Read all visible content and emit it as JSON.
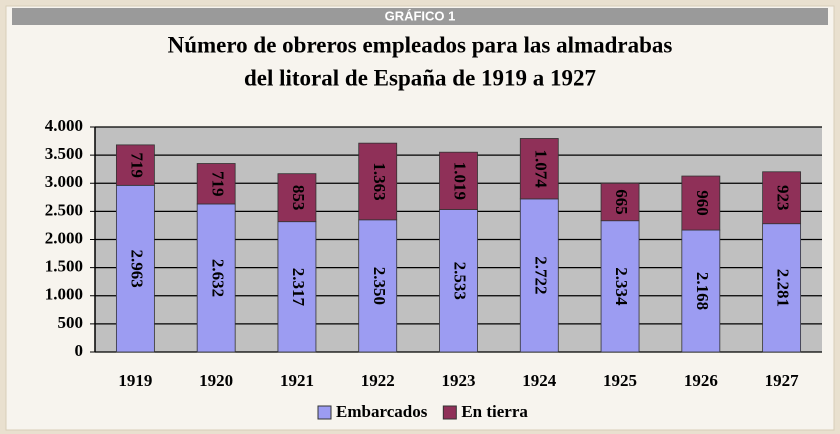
{
  "header": "GRÁFICO 1",
  "chart_data": {
    "type": "stacked-bar",
    "title": [
      "Número de obreros empleados para las almadrabas",
      "del litoral de España de 1919 a 1927"
    ],
    "categories": [
      "1919",
      "1920",
      "1921",
      "1922",
      "1923",
      "1924",
      "1925",
      "1926",
      "1927"
    ],
    "series": [
      {
        "name": "Embarcados",
        "color": "#9c9cf2",
        "values": [
          2963,
          2632,
          2317,
          2350,
          2533,
          2722,
          2334,
          2168,
          2281
        ],
        "value_labels": [
          "2.963",
          "2.632",
          "2.317",
          "2.350",
          "2.533",
          "2.722",
          "2.334",
          "2.168",
          "2.281"
        ]
      },
      {
        "name": "En tierra",
        "color": "#8f3058",
        "values": [
          719,
          719,
          853,
          1363,
          1019,
          1074,
          665,
          960,
          923
        ],
        "value_labels": [
          "719",
          "719",
          "853",
          "1.363",
          "1.019",
          "1.074",
          "665",
          "960",
          "923"
        ]
      }
    ],
    "ylim": [
      0,
      4000
    ],
    "yticks": [
      0,
      500,
      {
        "value": 1000,
        "label": "1.000"
      },
      {
        "value": 1500,
        "label": "1.500"
      },
      {
        "value": 2000,
        "label": "2.000"
      },
      {
        "value": 2500,
        "label": "2.500"
      },
      {
        "value": 3000,
        "label": "3.000"
      },
      {
        "value": 3500,
        "label": "3.500"
      },
      {
        "value": 4000,
        "label": "4.000"
      }
    ],
    "grid": true
  }
}
